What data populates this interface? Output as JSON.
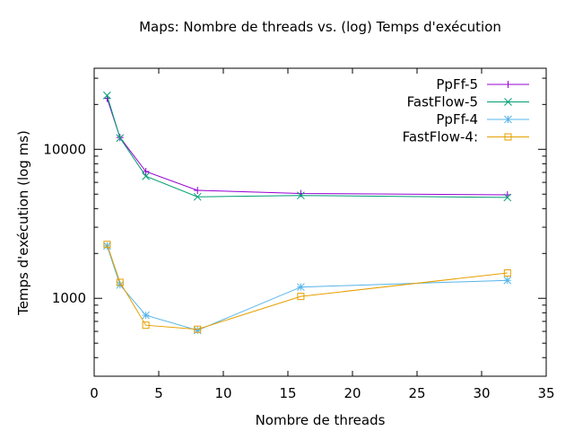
{
  "chart_data": {
    "type": "line",
    "title": "Maps: Nombre de threads vs. (log) Temps d'exécution",
    "xlabel": "Nombre de threads",
    "ylabel": "Temps d'exécution (log ms)",
    "xlim": [
      0,
      35
    ],
    "ylim": [
      300,
      35000
    ],
    "yscale": "log",
    "grid": false,
    "legend_position": "top-right",
    "x_ticks": [
      0,
      5,
      10,
      15,
      20,
      25,
      30,
      35
    ],
    "x_tick_labels": [
      "0",
      "5",
      "10",
      "15",
      "20",
      "25",
      "30",
      "35"
    ],
    "y_ticks": [
      1000,
      10000
    ],
    "y_tick_labels": [
      "1000",
      "10000"
    ],
    "x": [
      1,
      2,
      4,
      8,
      16,
      32
    ],
    "series": [
      {
        "name": "PpFf-5",
        "color": "#9400d3",
        "marker": "plus",
        "values": [
          22000,
          12000,
          7100,
          5300,
          5050,
          4950
        ]
      },
      {
        "name": "FastFlow-5",
        "color": "#009e73",
        "marker": "cross",
        "values": [
          23000,
          11900,
          6600,
          4800,
          4900,
          4750
        ]
      },
      {
        "name": "PpFf-4",
        "color": "#56b4e9",
        "marker": "star",
        "values": [
          2250,
          1230,
          770,
          610,
          1190,
          1320
        ]
      },
      {
        "name": "FastFlow-4:",
        "color": "#e69f00",
        "marker": "square",
        "values": [
          2300,
          1280,
          660,
          620,
          1030,
          1480
        ]
      }
    ]
  }
}
